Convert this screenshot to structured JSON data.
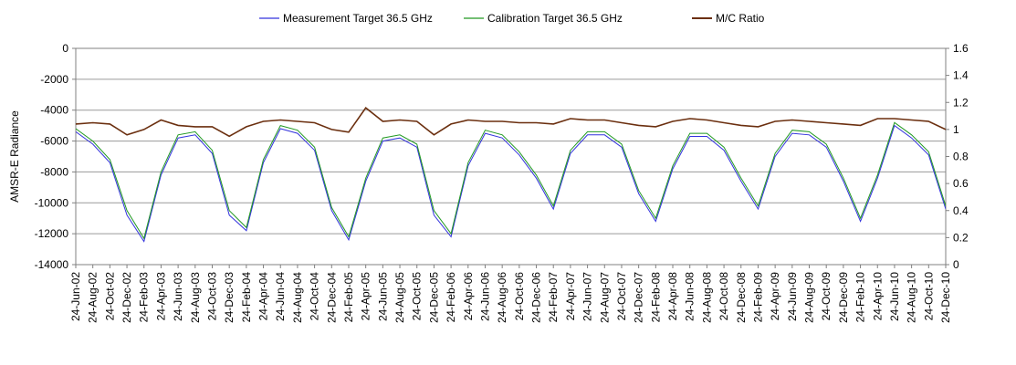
{
  "chart_data": {
    "type": "line",
    "xlabel": "",
    "ylabel": "AMSR-E Radiance",
    "ylim": [
      -14000,
      0
    ],
    "y2lim": [
      0,
      1.6
    ],
    "yticks": [
      "0",
      "-2000",
      "-4000",
      "-6000",
      "-8000",
      "-10000",
      "-12000",
      "-14000"
    ],
    "y2ticks": [
      "1.6",
      "1.4",
      "1.2",
      "1",
      "0.8",
      "0.6",
      "0.4",
      "0.2",
      "0"
    ],
    "xticks": [
      "24-Jun-02",
      "24-Aug-02",
      "24-Oct-02",
      "24-Dec-02",
      "24-Feb-03",
      "24-Apr-03",
      "24-Jun-03",
      "24-Aug-03",
      "24-Oct-03",
      "24-Dec-03",
      "24-Feb-04",
      "24-Apr-04",
      "24-Jun-04",
      "24-Aug-04",
      "24-Oct-04",
      "24-Dec-04",
      "24-Feb-05",
      "24-Apr-05",
      "24-Jun-05",
      "24-Aug-05",
      "24-Oct-05",
      "24-Dec-05",
      "24-Feb-06",
      "24-Apr-06",
      "24-Jun-06",
      "24-Aug-06",
      "24-Oct-06",
      "24-Dec-06",
      "24-Feb-07",
      "24-Apr-07",
      "24-Jun-07",
      "24-Aug-07",
      "24-Oct-07",
      "24-Dec-07",
      "24-Feb-08",
      "24-Apr-08",
      "24-Jun-08",
      "24-Aug-08",
      "24-Oct-08",
      "24-Dec-08",
      "24-Feb-09",
      "24-Apr-09",
      "24-Jun-09",
      "24-Aug-09",
      "24-Oct-09",
      "24-Dec-09",
      "24-Feb-10",
      "24-Apr-10",
      "24-Jun-10",
      "24-Aug-10",
      "24-Oct-10",
      "24-Dec-10"
    ],
    "grid": true,
    "legend": "top",
    "series": [
      {
        "name": "Measurement Target 36.5 GHz",
        "axis": "left",
        "color": "#3333dd",
        "x": [
          "24-Jun-02",
          "24-Aug-02",
          "24-Oct-02",
          "24-Dec-02",
          "24-Feb-03",
          "24-Apr-03",
          "24-Jun-03",
          "24-Aug-03",
          "24-Oct-03",
          "24-Dec-03",
          "24-Feb-04",
          "24-Apr-04",
          "24-Jun-04",
          "24-Aug-04",
          "24-Oct-04",
          "24-Dec-04",
          "24-Feb-05",
          "24-Apr-05",
          "24-Jun-05",
          "24-Aug-05",
          "24-Oct-05",
          "24-Dec-05",
          "24-Feb-06",
          "24-Apr-06",
          "24-Jun-06",
          "24-Aug-06",
          "24-Oct-06",
          "24-Dec-06",
          "24-Feb-07",
          "24-Apr-07",
          "24-Jun-07",
          "24-Aug-07",
          "24-Oct-07",
          "24-Dec-07",
          "24-Feb-08",
          "24-Apr-08",
          "24-Jun-08",
          "24-Aug-08",
          "24-Oct-08",
          "24-Dec-08",
          "24-Feb-09",
          "24-Apr-09",
          "24-Jun-09",
          "24-Aug-09",
          "24-Oct-09",
          "24-Dec-09",
          "24-Feb-10",
          "24-Apr-10",
          "24-Jun-10",
          "24-Aug-10",
          "24-Oct-10",
          "24-Dec-10"
        ],
        "values": [
          -5400,
          -6200,
          -7400,
          -10800,
          -12500,
          -8200,
          -5800,
          -5600,
          -6800,
          -10800,
          -11800,
          -7400,
          -5200,
          -5500,
          -6600,
          -10500,
          -12400,
          -8600,
          -6000,
          -5800,
          -6400,
          -10800,
          -12200,
          -7600,
          -5500,
          -5800,
          -6900,
          -8400,
          -10400,
          -6800,
          -5600,
          -5600,
          -6400,
          -9400,
          -11200,
          -7800,
          -5700,
          -5700,
          -6600,
          -8600,
          -10400,
          -7000,
          -5500,
          -5600,
          -6400,
          -8600,
          -11200,
          -8400,
          -5000,
          -5800,
          -6900,
          -10400
        ]
      },
      {
        "name": "Calibration Target 36.5 GHz",
        "axis": "left",
        "color": "#229922",
        "x": [
          "24-Jun-02",
          "24-Aug-02",
          "24-Oct-02",
          "24-Dec-02",
          "24-Feb-03",
          "24-Apr-03",
          "24-Jun-03",
          "24-Aug-03",
          "24-Oct-03",
          "24-Dec-03",
          "24-Feb-04",
          "24-Apr-04",
          "24-Jun-04",
          "24-Aug-04",
          "24-Oct-04",
          "24-Dec-04",
          "24-Feb-05",
          "24-Apr-05",
          "24-Jun-05",
          "24-Aug-05",
          "24-Oct-05",
          "24-Dec-05",
          "24-Feb-06",
          "24-Apr-06",
          "24-Jun-06",
          "24-Aug-06",
          "24-Oct-06",
          "24-Dec-06",
          "24-Feb-07",
          "24-Apr-07",
          "24-Jun-07",
          "24-Aug-07",
          "24-Oct-07",
          "24-Dec-07",
          "24-Feb-08",
          "24-Apr-08",
          "24-Jun-08",
          "24-Aug-08",
          "24-Oct-08",
          "24-Dec-08",
          "24-Feb-09",
          "24-Apr-09",
          "24-Jun-09",
          "24-Aug-09",
          "24-Oct-09",
          "24-Dec-09",
          "24-Feb-10",
          "24-Apr-10",
          "24-Jun-10",
          "24-Aug-10",
          "24-Oct-10",
          "24-Dec-10"
        ],
        "values": [
          -5200,
          -6000,
          -7200,
          -10500,
          -12300,
          -8000,
          -5600,
          -5400,
          -6600,
          -10500,
          -11600,
          -7200,
          -5000,
          -5300,
          -6400,
          -10300,
          -12200,
          -8400,
          -5800,
          -5600,
          -6200,
          -10500,
          -12000,
          -7400,
          -5300,
          -5600,
          -6700,
          -8200,
          -10200,
          -6600,
          -5400,
          -5400,
          -6200,
          -9200,
          -11000,
          -7600,
          -5500,
          -5500,
          -6400,
          -8400,
          -10200,
          -6800,
          -5300,
          -5400,
          -6200,
          -8400,
          -11000,
          -8200,
          -4800,
          -5600,
          -6700,
          -10200
        ]
      },
      {
        "name": "M/C Ratio",
        "axis": "right",
        "color": "#6b2f0f",
        "x": [
          "24-Jun-02",
          "24-Aug-02",
          "24-Oct-02",
          "24-Dec-02",
          "24-Feb-03",
          "24-Apr-03",
          "24-Jun-03",
          "24-Aug-03",
          "24-Oct-03",
          "24-Dec-03",
          "24-Feb-04",
          "24-Apr-04",
          "24-Jun-04",
          "24-Aug-04",
          "24-Oct-04",
          "24-Dec-04",
          "24-Feb-05",
          "24-Apr-05",
          "24-Jun-05",
          "24-Aug-05",
          "24-Oct-05",
          "24-Dec-05",
          "24-Feb-06",
          "24-Apr-06",
          "24-Jun-06",
          "24-Aug-06",
          "24-Oct-06",
          "24-Dec-06",
          "24-Feb-07",
          "24-Apr-07",
          "24-Jun-07",
          "24-Aug-07",
          "24-Oct-07",
          "24-Dec-07",
          "24-Feb-08",
          "24-Apr-08",
          "24-Jun-08",
          "24-Aug-08",
          "24-Oct-08",
          "24-Dec-08",
          "24-Feb-09",
          "24-Apr-09",
          "24-Jun-09",
          "24-Aug-09",
          "24-Oct-09",
          "24-Dec-09",
          "24-Feb-10",
          "24-Apr-10",
          "24-Jun-10",
          "24-Aug-10",
          "24-Oct-10",
          "24-Dec-10"
        ],
        "values": [
          1.04,
          1.05,
          1.04,
          0.96,
          1.0,
          1.07,
          1.03,
          1.02,
          1.02,
          0.95,
          1.02,
          1.06,
          1.07,
          1.06,
          1.05,
          1.0,
          0.98,
          1.16,
          1.06,
          1.07,
          1.06,
          0.96,
          1.04,
          1.07,
          1.06,
          1.06,
          1.05,
          1.05,
          1.04,
          1.08,
          1.07,
          1.07,
          1.05,
          1.03,
          1.02,
          1.06,
          1.08,
          1.07,
          1.05,
          1.03,
          1.02,
          1.06,
          1.07,
          1.06,
          1.05,
          1.04,
          1.03,
          1.08,
          1.08,
          1.07,
          1.06,
          1.0
        ]
      }
    ]
  }
}
